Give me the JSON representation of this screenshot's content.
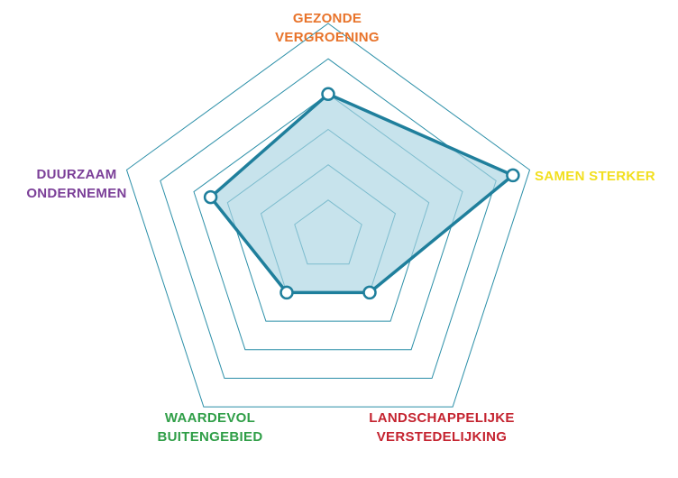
{
  "chart_data": {
    "type": "radar",
    "title": "",
    "axes": [
      {
        "label": [
          "GEZONDE",
          "VERGROENING"
        ],
        "color": "#e8732a"
      },
      {
        "label": [
          "SAMEN STERKER"
        ],
        "color": "#f2df1e"
      },
      {
        "label": [
          "LANDSCHAPPELIJKE",
          "VERSTEDELIJKING"
        ],
        "color": "#c4232f"
      },
      {
        "label": [
          "WAARDEVOL",
          "BUITENGEBIED"
        ],
        "color": "#2f9e47"
      },
      {
        "label": [
          "DUURZAAM",
          "ONDERNEMEN"
        ],
        "color": "#7b3f98"
      }
    ],
    "scale": {
      "min": 0,
      "max": 6,
      "rings": [
        1,
        2,
        3,
        4,
        5,
        6
      ]
    },
    "series": [
      {
        "values": [
          4,
          5.5,
          2,
          2,
          3.5
        ]
      }
    ],
    "colors": {
      "grid": "#2b8fa8",
      "line": "#1f7f9c",
      "fill": "#a9d4e2",
      "marker_fill": "#ffffff"
    }
  }
}
